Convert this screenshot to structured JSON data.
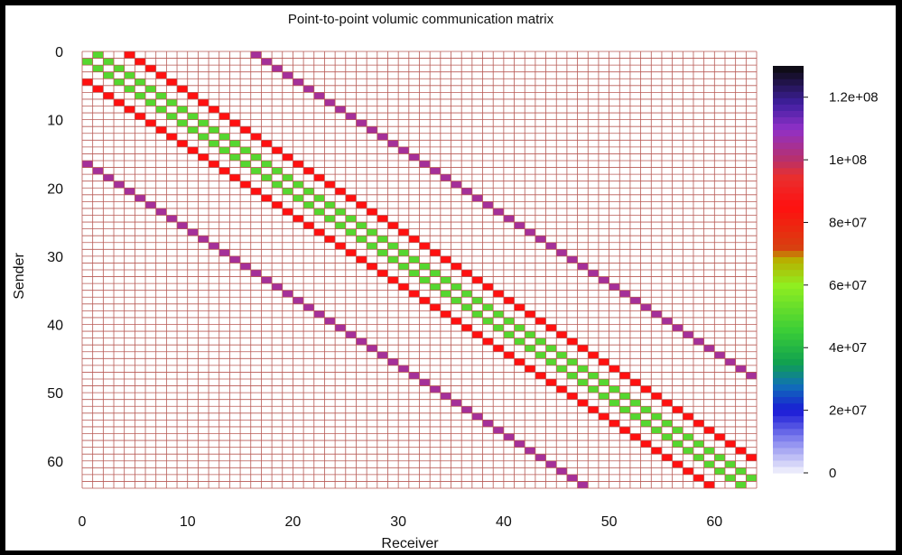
{
  "chart_data": {
    "type": "heatmap",
    "title": "Point-to-point volumic communication matrix",
    "xlabel": "Receiver",
    "ylabel": "Sender",
    "x_range": [
      0,
      63
    ],
    "y_range": [
      0,
      63
    ],
    "y_inverted": true,
    "x_ticks": [
      0,
      10,
      20,
      30,
      40,
      50,
      60
    ],
    "y_ticks": [
      0,
      10,
      20,
      30,
      40,
      50,
      60
    ],
    "grid": true,
    "grid_color": "#b85a55",
    "colorbar": {
      "min": 0,
      "max": 130000000,
      "tick_values": [
        0,
        20000000,
        40000000,
        60000000,
        80000000,
        100000000,
        120000000
      ],
      "tick_labels": [
        "0",
        "2e+07",
        "4e+07",
        "6e+07",
        "8e+07",
        "1e+08",
        "1.2e+08"
      ],
      "stops": [
        {
          "value": 0,
          "color": "#f4f4fc"
        },
        {
          "value": 10000000,
          "color": "#8c8cf0"
        },
        {
          "value": 20000000,
          "color": "#1a1ad6"
        },
        {
          "value": 28000000,
          "color": "#1070b8"
        },
        {
          "value": 35000000,
          "color": "#10a050"
        },
        {
          "value": 45000000,
          "color": "#38cc38"
        },
        {
          "value": 60000000,
          "color": "#90ee20"
        },
        {
          "value": 68000000,
          "color": "#b8b000"
        },
        {
          "value": 72000000,
          "color": "#d84010"
        },
        {
          "value": 85000000,
          "color": "#ff1010"
        },
        {
          "value": 95000000,
          "color": "#e83030"
        },
        {
          "value": 100000000,
          "color": "#b8306a"
        },
        {
          "value": 110000000,
          "color": "#9030c8"
        },
        {
          "value": 118000000,
          "color": "#4020a0"
        },
        {
          "value": 130000000,
          "color": "#0a0a0a"
        }
      ]
    },
    "diagonal_bands": [
      {
        "offset": 1,
        "from": 0,
        "to": 62,
        "value": 50000000
      },
      {
        "offset": -1,
        "from": 1,
        "to": 63,
        "value": 50000000
      },
      {
        "offset": 4,
        "from": 0,
        "to": 59,
        "value": 85000000
      },
      {
        "offset": -4,
        "from": 4,
        "to": 63,
        "value": 85000000
      },
      {
        "offset": 16,
        "from": 0,
        "to": 47,
        "value": 105000000
      },
      {
        "offset": -16,
        "from": 16,
        "to": 63,
        "value": 105000000
      }
    ]
  },
  "colors": {
    "frame": "#000000",
    "background": "#ffffff",
    "empty_cell": "#ffffff"
  }
}
